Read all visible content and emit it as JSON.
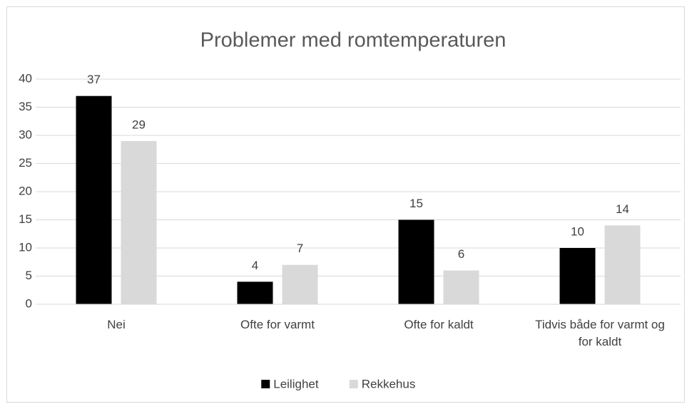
{
  "chart_data": {
    "type": "bar",
    "title": "Problemer med romtemperaturen",
    "categories": [
      "Nei",
      "Ofte for varmt",
      "Ofte for kaldt",
      "Tidvis både for varmt og for kaldt"
    ],
    "series": [
      {
        "name": "Leilighet",
        "color": "#000000",
        "values": [
          37,
          4,
          15,
          10
        ]
      },
      {
        "name": "Rekkehus",
        "color": "#d9d9d9",
        "values": [
          29,
          7,
          6,
          14
        ]
      }
    ],
    "ylim": [
      0,
      40
    ],
    "yticks": [
      0,
      5,
      10,
      15,
      20,
      25,
      30,
      35,
      40
    ],
    "grid": true,
    "legend": "bottom"
  }
}
